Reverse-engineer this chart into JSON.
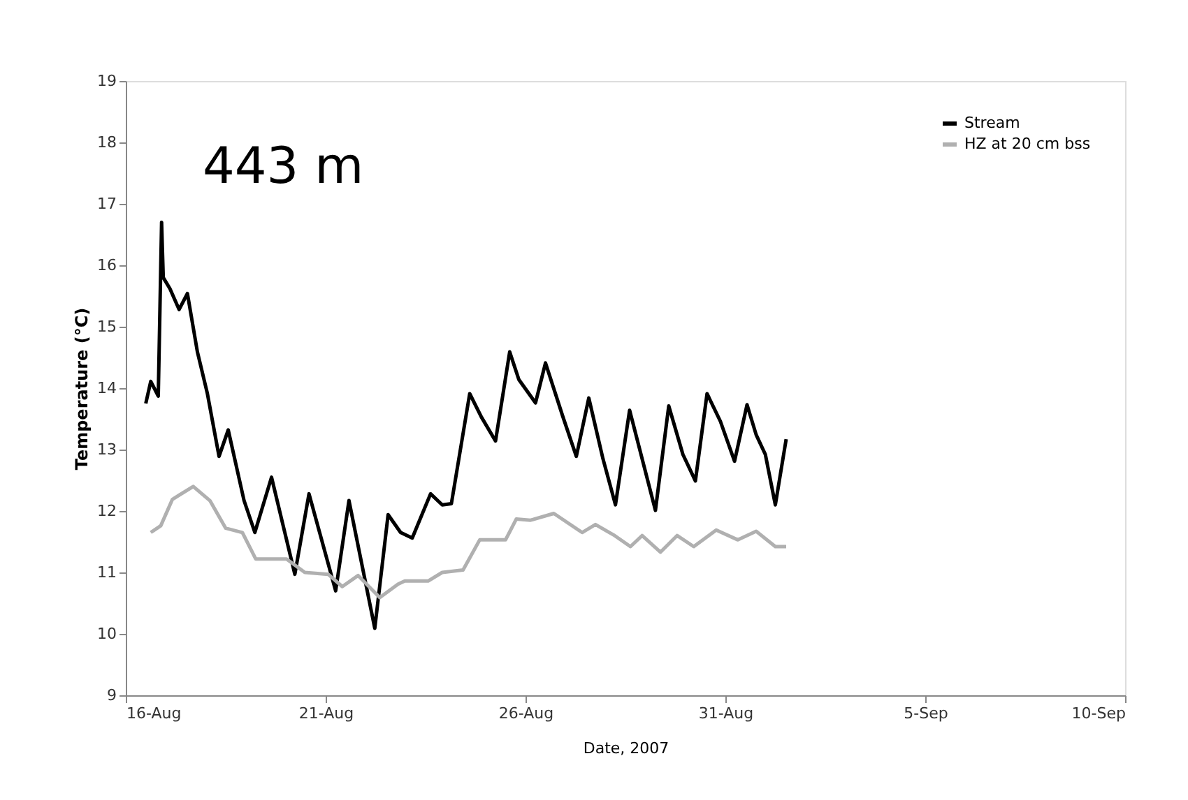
{
  "chart_data": {
    "type": "line",
    "xlabel": "Date, 2007",
    "ylabel": "Temperature (°C)",
    "annotations": [
      "443 m"
    ],
    "xlim": [
      "2007-08-16",
      "2007-09-10"
    ],
    "xticks": [
      {
        "value": "2007-08-16",
        "label": "16-Aug"
      },
      {
        "value": "2007-08-21",
        "label": "21-Aug"
      },
      {
        "value": "2007-08-26",
        "label": "26-Aug"
      },
      {
        "value": "2007-08-31",
        "label": "31-Aug"
      },
      {
        "value": "2007-09-05",
        "label": "5-Sep"
      },
      {
        "value": "2007-09-10",
        "label": "10-Sep"
      }
    ],
    "ylim": [
      9,
      19
    ],
    "yticks": [
      9,
      10,
      11,
      12,
      13,
      14,
      15,
      16,
      17,
      18,
      19
    ],
    "grid": false,
    "legend": "top right",
    "line_style": "solid",
    "series": [
      {
        "name": "Stream",
        "color": "#000000",
        "x": [
          "2007-08-16T12:00",
          "2007-08-16T15:00",
          "2007-08-16T19:30",
          "2007-08-16T21:30",
          "2007-08-16T22:30",
          "2007-08-17T02:30",
          "2007-08-17T08:00",
          "2007-08-17T13:00",
          "2007-08-17T19:00",
          "2007-08-18T01:00",
          "2007-08-18T08:00",
          "2007-08-18T13:30",
          "2007-08-18T23:00",
          "2007-08-19T05:30",
          "2007-08-19T15:30",
          "2007-08-20T05:30",
          "2007-08-20T14:00",
          "2007-08-21T06:00",
          "2007-08-21T14:00",
          "2007-08-22T05:30",
          "2007-08-22T13:30",
          "2007-08-22T21:00",
          "2007-08-23T04:00",
          "2007-08-23T15:00",
          "2007-08-23T22:00",
          "2007-08-24T03:30",
          "2007-08-24T14:30",
          "2007-08-24T21:30",
          "2007-08-25T06:00",
          "2007-08-25T14:30",
          "2007-08-25T20:00",
          "2007-08-26T06:00",
          "2007-08-26T12:00",
          "2007-08-26T22:30",
          "2007-08-27T06:30",
          "2007-08-27T14:00",
          "2007-08-27T22:30",
          "2007-08-28T06:00",
          "2007-08-28T14:30",
          "2007-08-29T06:00",
          "2007-08-29T14:00",
          "2007-08-29T22:30",
          "2007-08-30T06:00",
          "2007-08-30T13:00",
          "2007-08-30T21:00",
          "2007-08-31T05:30",
          "2007-08-31T13:00",
          "2007-08-31T18:30",
          "2007-09-01T00:00",
          "2007-09-01T06:00",
          "2007-09-01T12:30"
        ],
        "values": [
          13.75,
          14.11,
          13.87,
          16.7,
          15.8,
          15.62,
          15.28,
          15.54,
          14.59,
          13.91,
          12.89,
          13.32,
          12.17,
          11.65,
          12.55,
          10.97,
          12.28,
          10.7,
          12.17,
          10.09,
          11.94,
          11.65,
          11.56,
          12.28,
          12.1,
          12.12,
          13.91,
          13.53,
          13.14,
          14.59,
          14.14,
          13.76,
          14.41,
          13.53,
          12.89,
          13.84,
          12.85,
          12.1,
          13.64,
          12.01,
          13.71,
          12.92,
          12.49,
          13.91,
          13.46,
          12.81,
          13.73,
          13.24,
          12.92,
          12.1,
          13.17
        ]
      },
      {
        "name": "HZ at 20 cm bss",
        "color": "#b0b0b0",
        "x": [
          "2007-08-16T15:00",
          "2007-08-16T21:00",
          "2007-08-17T04:00",
          "2007-08-17T16:30",
          "2007-08-18T02:30",
          "2007-08-18T12:00",
          "2007-08-18T22:00",
          "2007-08-19T06:00",
          "2007-08-20T00:30",
          "2007-08-20T11:30",
          "2007-08-21T01:30",
          "2007-08-21T10:00",
          "2007-08-21T19:30",
          "2007-08-22T08:30",
          "2007-08-22T19:30",
          "2007-08-22T23:30",
          "2007-08-23T13:30",
          "2007-08-23T22:00",
          "2007-08-24T10:30",
          "2007-08-24T20:30",
          "2007-08-25T12:00",
          "2007-08-25T18:30",
          "2007-08-26T03:00",
          "2007-08-26T17:00",
          "2007-08-27T10:00",
          "2007-08-27T18:00",
          "2007-08-28T05:30",
          "2007-08-28T15:00",
          "2007-08-28T22:00",
          "2007-08-29T09:00",
          "2007-08-29T19:00",
          "2007-08-30T05:00",
          "2007-08-30T18:30",
          "2007-08-31T07:30",
          "2007-08-31T18:30",
          "2007-09-01T06:00",
          "2007-09-01T12:30"
        ],
        "values": [
          11.65,
          11.76,
          12.19,
          12.4,
          12.17,
          11.72,
          11.65,
          11.22,
          11.22,
          11.0,
          10.97,
          10.77,
          10.95,
          10.59,
          10.81,
          10.86,
          10.86,
          11.0,
          11.04,
          11.53,
          11.53,
          11.87,
          11.85,
          11.96,
          11.65,
          11.78,
          11.6,
          11.42,
          11.6,
          11.33,
          11.6,
          11.42,
          11.69,
          11.53,
          11.67,
          11.42,
          11.42
        ]
      }
    ]
  }
}
